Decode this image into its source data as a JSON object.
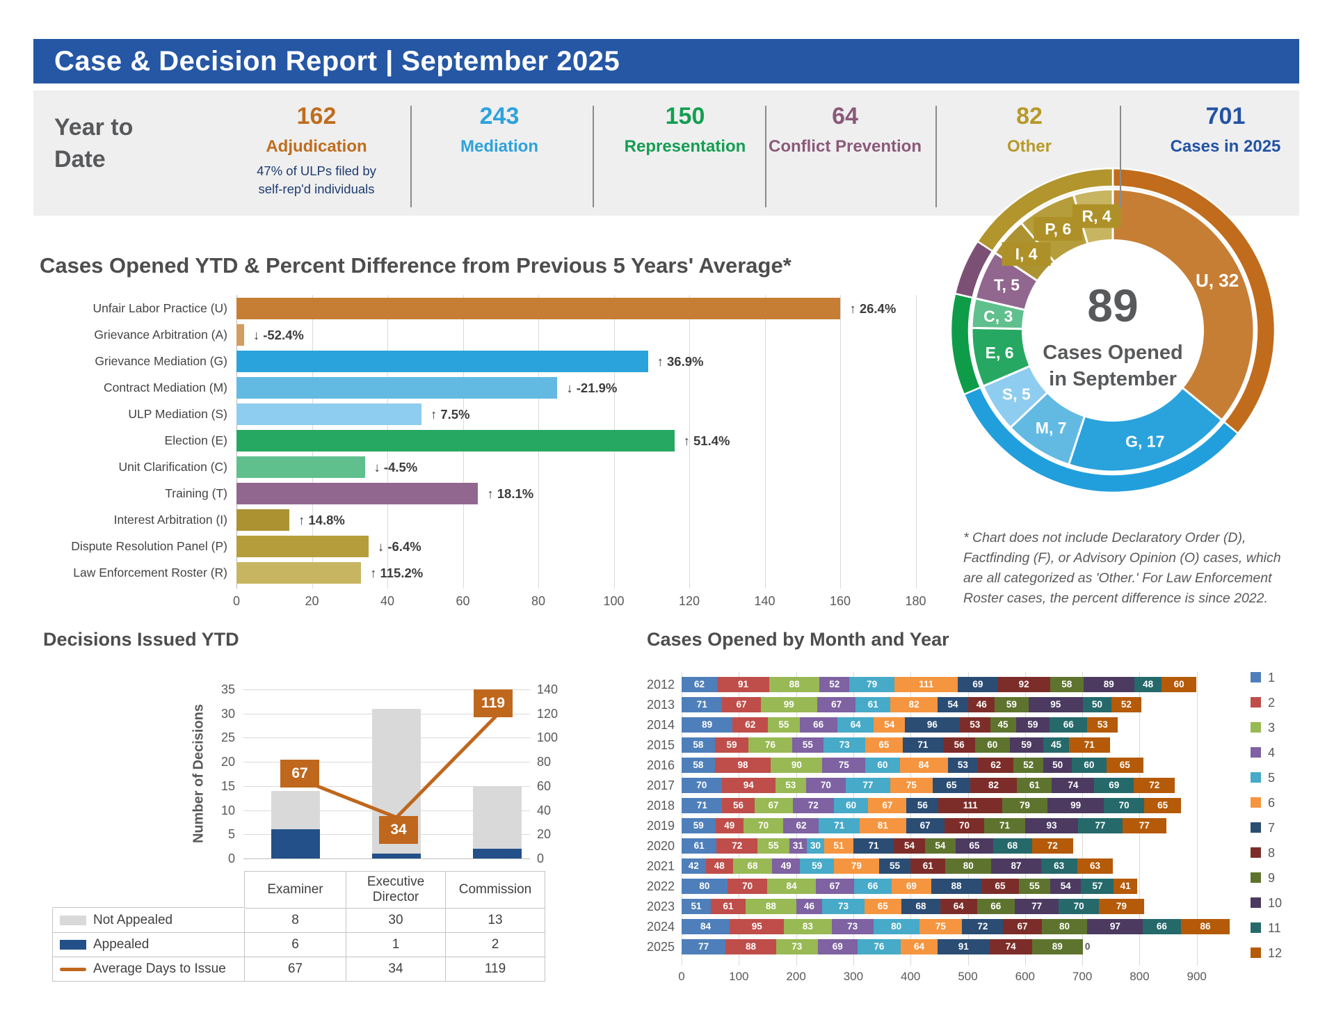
{
  "header": {
    "title": "Case & Decision Report | September 2025"
  },
  "ytd": {
    "label": "Year to Date",
    "stats": [
      {
        "value": "162",
        "label": "Adjudication",
        "color": "#bf6d1d",
        "note_line1": "47% of ULPs filed by",
        "note_line2": "self-rep'd individuals"
      },
      {
        "value": "243",
        "label": "Mediation",
        "color": "#2da2dc"
      },
      {
        "value": "150",
        "label": "Representation",
        "color": "#149e51"
      },
      {
        "value": "64",
        "label": "Conflict Prevention",
        "color": "#8a5a79"
      },
      {
        "value": "82",
        "label": "Other",
        "color": "#b8992a"
      },
      {
        "value": "701",
        "label": "Cases in 2025",
        "color": "#2253a3"
      }
    ]
  },
  "chart_data": [
    {
      "id": "ytd_bars",
      "type": "bar",
      "orientation": "horizontal",
      "title": "Cases Opened YTD & Percent Difference from Previous 5 Years' Average*",
      "xlim": [
        0,
        180
      ],
      "xticks": [
        0,
        20,
        40,
        60,
        80,
        100,
        120,
        140,
        160,
        180
      ],
      "categories": [
        "Unfair Labor Practice (U)",
        "Grievance Arbitration (A)",
        "Grievance Mediation (G)",
        "Contract Mediation (M)",
        "ULP Mediation (S)",
        "Election (E)",
        "Unit Clarification (C)",
        "Training (T)",
        "Interest Arbitration (I)",
        "Dispute Resolution Panel (P)",
        "Law Enforcement Roster (R)"
      ],
      "values": [
        160,
        2,
        109,
        85,
        49,
        116,
        34,
        64,
        14,
        35,
        33
      ],
      "pct_labels": [
        "↑ 26.4%",
        "↓ -52.4%",
        "↑ 36.9%",
        "↓ -21.9%",
        "↑ 7.5%",
        "↑ 51.4%",
        "↓ -4.5%",
        "↑ 18.1%",
        "↑ 14.8%",
        "↓ -6.4%",
        "↑ 115.2%"
      ],
      "colors": [
        "#c67e35",
        "#d19d61",
        "#2aa3dc",
        "#62bae3",
        "#8ecdf0",
        "#27a862",
        "#5fc08d",
        "#91678f",
        "#ad9232",
        "#b69d3b",
        "#c8b562"
      ],
      "footnote_lines": [
        "* Chart does not include Declaratory Order (D),",
        "Factfinding (F), or Advisory Opinion (O) cases, which",
        "are all categorized as 'Other.' For Law Enforcement",
        "Roster cases, the percent difference is since 2022."
      ]
    },
    {
      "id": "september_donut",
      "type": "pie",
      "center_value": "89",
      "center_label1": "Cases Opened",
      "center_label2": "in September",
      "segments": [
        {
          "key": "U",
          "value": 32,
          "color": "#c67e35",
          "group": "Adjudication"
        },
        {
          "key": "G",
          "value": 17,
          "color": "#2aa3dc",
          "group": "Mediation"
        },
        {
          "key": "M",
          "value": 7,
          "color": "#62bae3",
          "group": "Mediation"
        },
        {
          "key": "S",
          "value": 5,
          "color": "#8ecdf0",
          "group": "Mediation"
        },
        {
          "key": "E",
          "value": 6,
          "color": "#27a862",
          "group": "Representation"
        },
        {
          "key": "C",
          "value": 3,
          "color": "#5fc08d",
          "group": "Representation"
        },
        {
          "key": "T",
          "value": 5,
          "color": "#91678f",
          "group": "Conflict Prevention"
        },
        {
          "key": "I",
          "value": 4,
          "color": "#ad9232",
          "group": "Other",
          "badge": true
        },
        {
          "key": "P",
          "value": 6,
          "color": "#b69d3b",
          "group": "Other",
          "badge": true
        },
        {
          "key": "R",
          "value": 4,
          "color": "#c8b562",
          "group": "Other",
          "badge": true
        }
      ],
      "groups": [
        {
          "name": "Adjudication",
          "value": 32,
          "color": "#c06c1c"
        },
        {
          "name": "Mediation",
          "value": 29,
          "color": "#219fdd"
        },
        {
          "name": "Representation",
          "value": 9,
          "color": "#0f9c48"
        },
        {
          "name": "Conflict Prevention",
          "value": 5,
          "color": "#7c5074"
        },
        {
          "name": "Other",
          "value": 14,
          "color": "#b2952d"
        }
      ]
    },
    {
      "id": "decisions",
      "type": "bar",
      "stacked": true,
      "title": "Decisions Issued YTD",
      "ylabel": "Number of Decisions",
      "categories": [
        "Examiner",
        "Executive Director",
        "Commission"
      ],
      "series": [
        {
          "name": "Not Appealed",
          "type": "bar",
          "values": [
            8,
            30,
            13
          ],
          "color": "#d9d9d9"
        },
        {
          "name": "Appealed",
          "type": "bar",
          "values": [
            6,
            1,
            2
          ],
          "color": "#235089"
        },
        {
          "name": "Average Days to Issue",
          "type": "line",
          "values": [
            67,
            34,
            119
          ],
          "color": "#bf671d",
          "axis": "right"
        }
      ],
      "left_axis": {
        "max": 35,
        "ticks": [
          0,
          5,
          10,
          15,
          20,
          25,
          30,
          35
        ]
      },
      "right_axis": {
        "max": 140,
        "ticks": [
          0,
          20,
          40,
          60,
          80,
          100,
          120,
          140
        ]
      }
    },
    {
      "id": "monthly",
      "type": "bar",
      "stacked": true,
      "orientation": "horizontal",
      "title": "Cases Opened by Month and Year",
      "xticks": [
        0,
        100,
        200,
        300,
        400,
        500,
        600,
        700,
        800,
        900
      ],
      "legend": [
        "1",
        "2",
        "3",
        "4",
        "5",
        "6",
        "7",
        "8",
        "9",
        "10",
        "11",
        "12"
      ],
      "month_colors": [
        "#4e7fba",
        "#bf4d4a",
        "#98b954",
        "#7e62a1",
        "#46aac8",
        "#f59540",
        "#2b4d74",
        "#7d2d29",
        "#5e742e",
        "#4c3a61",
        "#25696b",
        "#b55a08"
      ],
      "categories": [
        "2012",
        "2013",
        "2014",
        "2015",
        "2016",
        "2017",
        "2018",
        "2019",
        "2020",
        "2021",
        "2022",
        "2023",
        "2024",
        "2025"
      ],
      "series_by_year": [
        [
          62,
          91,
          88,
          52,
          79,
          111,
          69,
          92,
          58,
          89,
          48,
          60
        ],
        [
          71,
          67,
          99,
          67,
          61,
          82,
          54,
          46,
          59,
          95,
          50,
          52
        ],
        [
          89,
          62,
          55,
          66,
          64,
          54,
          96,
          53,
          45,
          59,
          66,
          53
        ],
        [
          58,
          59,
          76,
          55,
          73,
          65,
          71,
          56,
          60,
          59,
          45,
          71
        ],
        [
          58,
          98,
          90,
          75,
          60,
          84,
          53,
          62,
          52,
          50,
          60,
          65
        ],
        [
          70,
          94,
          53,
          70,
          77,
          75,
          65,
          82,
          61,
          74,
          69,
          72
        ],
        [
          71,
          56,
          67,
          72,
          60,
          67,
          56,
          111,
          79,
          99,
          70,
          65
        ],
        [
          59,
          49,
          70,
          62,
          71,
          81,
          67,
          70,
          71,
          93,
          77,
          77
        ],
        [
          61,
          72,
          55,
          31,
          30,
          51,
          71,
          54,
          54,
          65,
          68,
          72
        ],
        [
          42,
          48,
          68,
          49,
          59,
          79,
          55,
          61,
          80,
          87,
          63,
          63
        ],
        [
          80,
          70,
          84,
          67,
          66,
          69,
          88,
          65,
          55,
          54,
          57,
          41
        ],
        [
          51,
          61,
          88,
          46,
          73,
          65,
          68,
          64,
          66,
          77,
          70,
          79
        ],
        [
          84,
          95,
          83,
          73,
          80,
          75,
          72,
          67,
          80,
          97,
          66,
          86
        ],
        [
          77,
          88,
          73,
          69,
          76,
          64,
          91,
          74,
          89,
          0
        ]
      ]
    }
  ]
}
